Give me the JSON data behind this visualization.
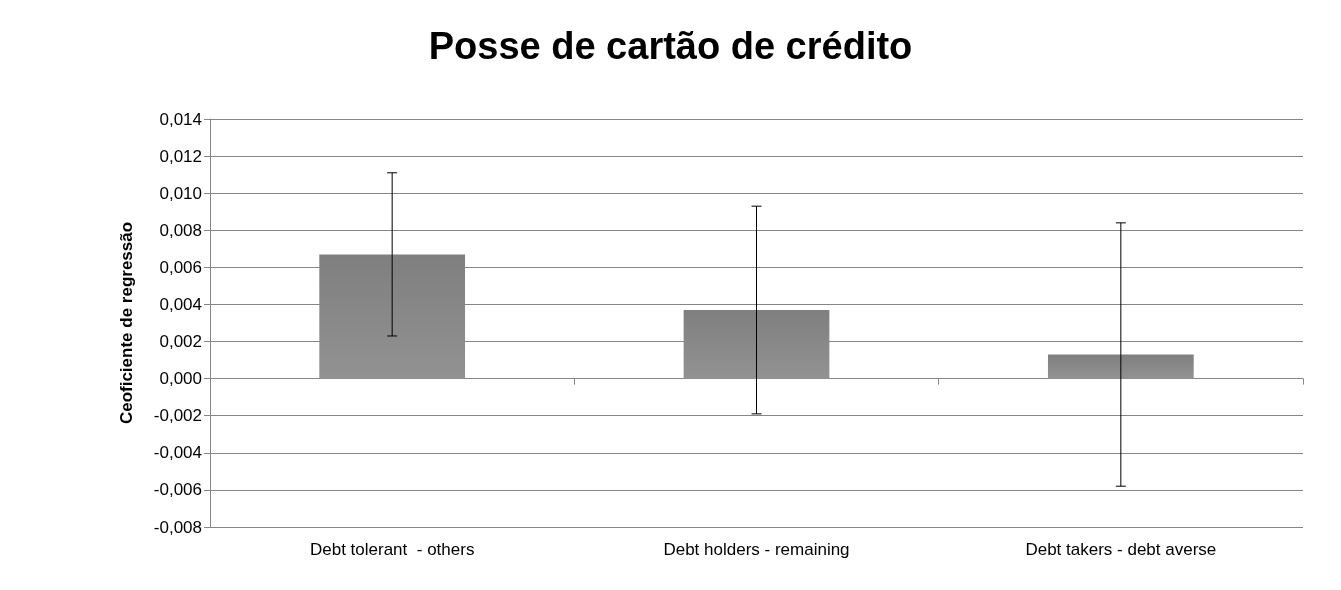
{
  "chart_data": {
    "type": "bar",
    "title": "Posse de cartão de crédito",
    "ylabel": "Ceoficiente de regressão",
    "categories": [
      "Debt tolerant  - others",
      "Debt holders - remaining",
      "Debt takers - debt averse"
    ],
    "values": [
      0.0067,
      0.0037,
      0.0013
    ],
    "errors": [
      0.0044,
      0.0056,
      0.0071
    ],
    "color": "#7f7f7f",
    "ylim": [
      -0.008,
      0.014
    ],
    "yticks": [
      {
        "value": -0.008,
        "label": "-0,008"
      },
      {
        "value": -0.006,
        "label": "-0,006"
      },
      {
        "value": -0.004,
        "label": "-0,004"
      },
      {
        "value": -0.002,
        "label": "-0,002"
      },
      {
        "value": 0,
        "label": "0,000"
      },
      {
        "value": 0.002,
        "label": "0,002"
      },
      {
        "value": 0.004,
        "label": "0,004"
      },
      {
        "value": 0.006,
        "label": "0,006"
      },
      {
        "value": 0.008,
        "label": "0,008"
      },
      {
        "value": 0.01,
        "label": "0,010"
      },
      {
        "value": 0.012,
        "label": "0,012"
      },
      {
        "value": 0.014,
        "label": "0,014"
      }
    ],
    "grid": "y"
  }
}
